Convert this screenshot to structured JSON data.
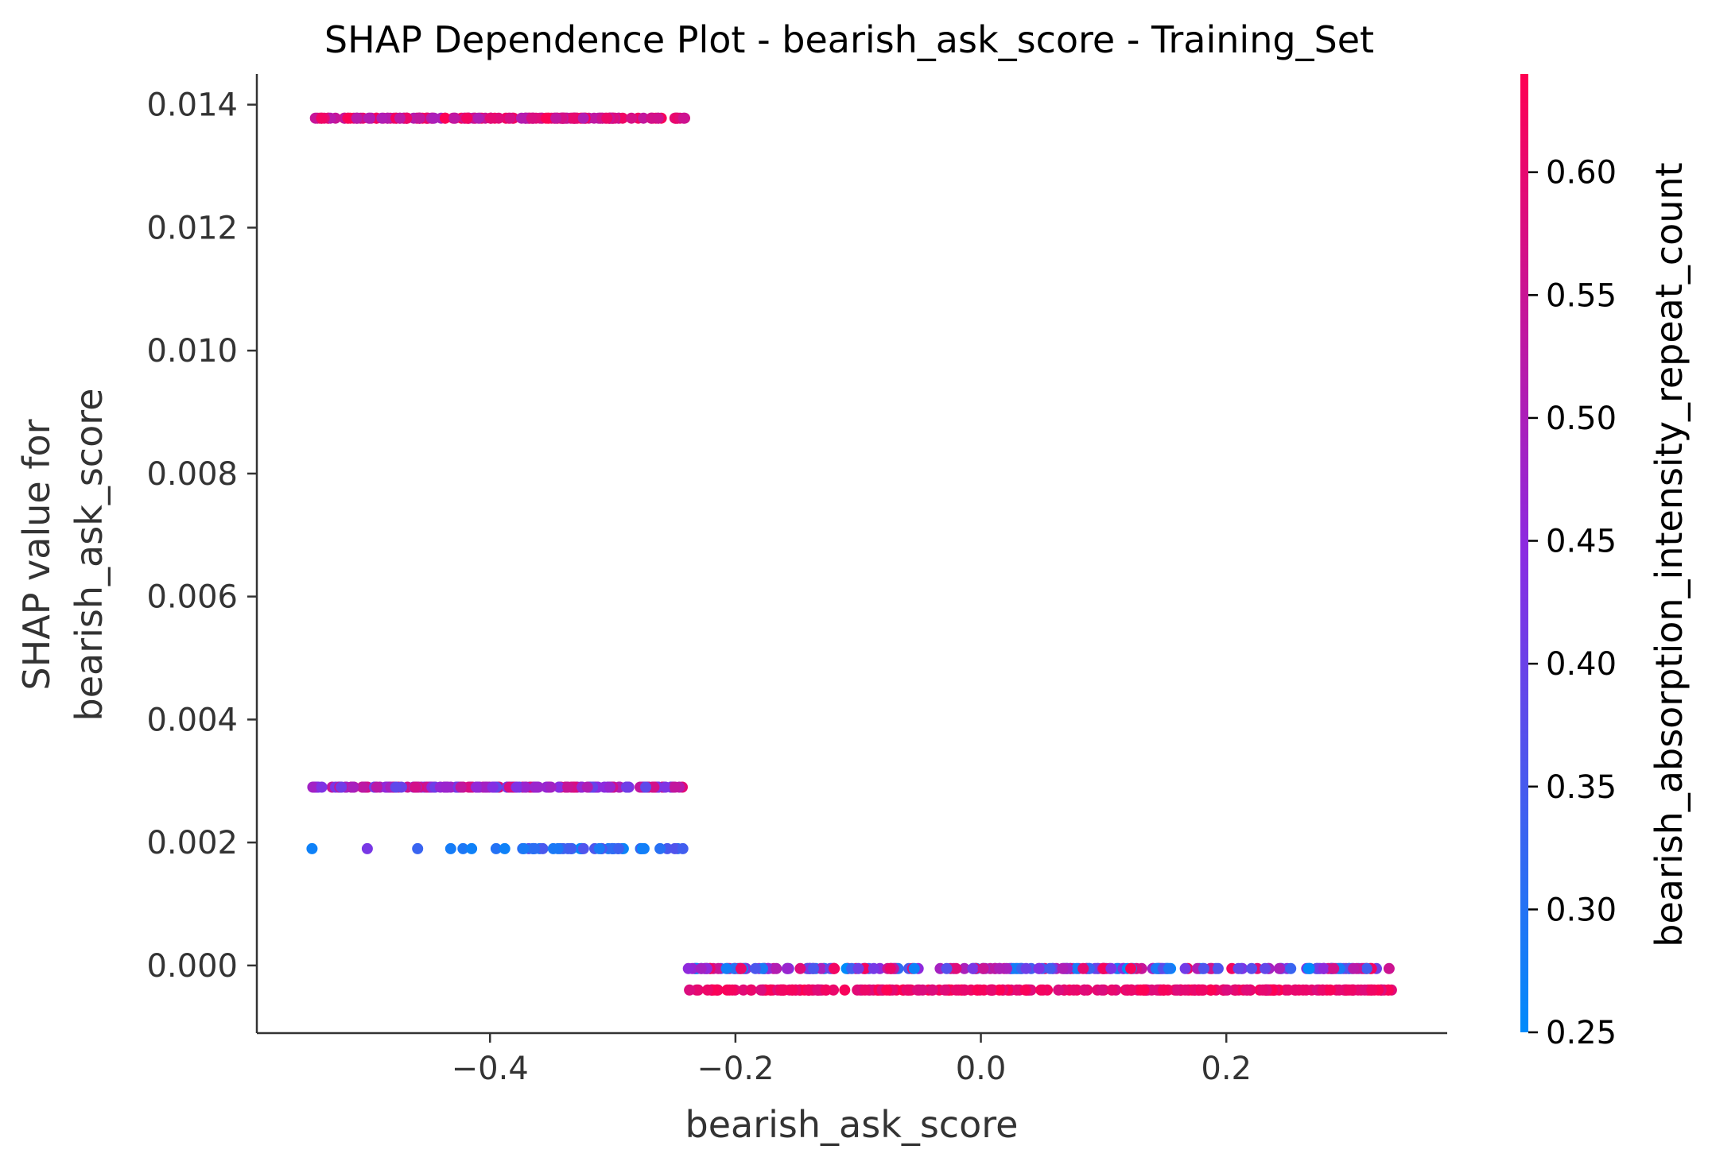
{
  "chart_data": {
    "type": "scatter",
    "title": "SHAP Dependence Plot - bearish_ask_score - Training_Set",
    "xlabel": "bearish_ask_score",
    "ylabel_lines": [
      "SHAP value for",
      "bearish_ask_score"
    ],
    "xlim": [
      -0.59,
      0.38
    ],
    "ylim": [
      -0.0011,
      0.0145
    ],
    "xticks": [
      -0.4,
      -0.2,
      0.0,
      0.2
    ],
    "xtick_labels": [
      "−0.4",
      "−0.2",
      "0.0",
      "0.2"
    ],
    "yticks": [
      0.0,
      0.002,
      0.004,
      0.006,
      0.008,
      0.01,
      0.012,
      0.014
    ],
    "ytick_labels": [
      "0.000",
      "0.002",
      "0.004",
      "0.006",
      "0.008",
      "0.010",
      "0.012",
      "0.014"
    ],
    "grid": false,
    "colorbar": {
      "label": "bearish_absorption_intensity_repeat_count",
      "range": [
        0.25,
        0.64
      ],
      "ticks": [
        0.25,
        0.3,
        0.35,
        0.4,
        0.45,
        0.5,
        0.55,
        0.6
      ],
      "tick_labels": [
        "0.25",
        "0.30",
        "0.35",
        "0.40",
        "0.45",
        "0.50",
        "0.55",
        "0.60"
      ],
      "colormap": [
        "#008bfb",
        "#8a2be2",
        "#ff0052"
      ]
    },
    "clusters": [
      {
        "shap_value": 0.01378,
        "x_range": [
          -0.545,
          -0.24
        ],
        "color_value_range": [
          0.5,
          0.64
        ],
        "description": "high SHAP band"
      },
      {
        "shap_value": 0.0029,
        "x_range": [
          -0.545,
          -0.24
        ],
        "color_value_range": [
          0.38,
          0.6
        ],
        "description": "middle SHAP band"
      },
      {
        "shap_value": 0.0019,
        "x_range": [
          -0.545,
          -0.24
        ],
        "color_value_range": [
          0.25,
          0.45
        ],
        "description": "low SHAP band (sparse)"
      },
      {
        "shap_value": -5e-05,
        "x_range": [
          -0.24,
          0.335
        ],
        "color_value_range": [
          0.25,
          0.64
        ],
        "description": "near-zero upper band"
      },
      {
        "shap_value": -0.0004,
        "x_range": [
          -0.24,
          0.335
        ],
        "color_value_range": [
          0.58,
          0.64
        ],
        "description": "near-zero lower band"
      }
    ],
    "sparse_points_low_band": [
      {
        "x": -0.545,
        "y": 0.0019,
        "c": 0.27
      },
      {
        "x": -0.5,
        "y": 0.0019,
        "c": 0.42
      },
      {
        "x": -0.459,
        "y": 0.0019,
        "c": 0.33
      },
      {
        "x": -0.432,
        "y": 0.0019,
        "c": 0.28
      },
      {
        "x": -0.422,
        "y": 0.0019,
        "c": 0.29
      },
      {
        "x": -0.415,
        "y": 0.0019,
        "c": 0.27
      },
      {
        "x": -0.395,
        "y": 0.0019,
        "c": 0.3
      },
      {
        "x": -0.388,
        "y": 0.0019,
        "c": 0.27
      }
    ]
  }
}
